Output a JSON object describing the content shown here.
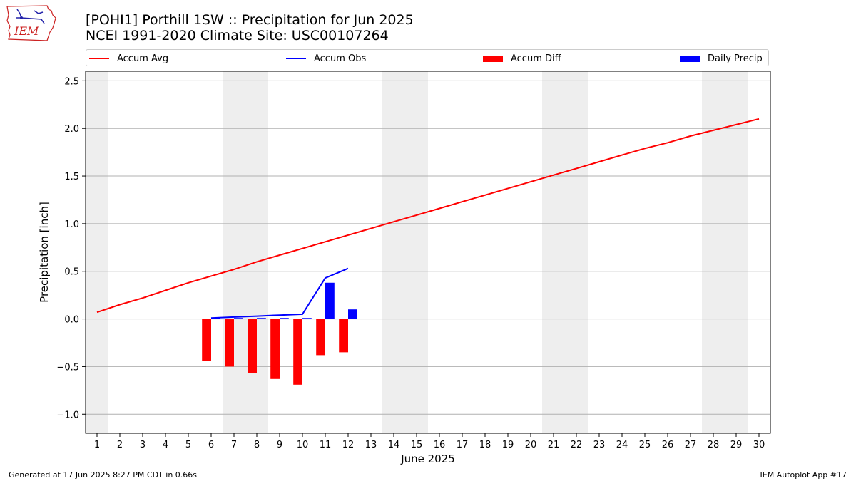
{
  "logo": {
    "text": "IEM"
  },
  "title_line1": "[POHI1] Porthill 1SW :: Precipitation for Jun 2025",
  "title_line2": "NCEI 1991-2020 Climate Site: USC00107264",
  "footer_left": "Generated at 17 Jun 2025 8:27 PM CDT in 0.66s",
  "footer_right": "IEM Autoplot App #17",
  "legend": [
    {
      "label": "Accum Avg",
      "kind": "line",
      "color": "#ff0000"
    },
    {
      "label": "Accum Obs",
      "kind": "line",
      "color": "#0000ff"
    },
    {
      "label": "Accum Diff",
      "kind": "bar",
      "color": "#ff0000"
    },
    {
      "label": "Daily Precip",
      "kind": "bar",
      "color": "#0000ff"
    }
  ],
  "chart_data": {
    "type": "bar",
    "title": "[POHI1] Porthill 1SW :: Precipitation for Jun 2025",
    "subtitle": "NCEI 1991-2020 Climate Site: USC00107264",
    "xlabel": "June 2025",
    "ylabel": "Precipitation [inch]",
    "xlim": [
      0.5,
      30.5
    ],
    "ylim": [
      -1.2,
      2.6
    ],
    "x_ticks": [
      1,
      2,
      3,
      4,
      5,
      6,
      7,
      8,
      9,
      10,
      11,
      12,
      13,
      14,
      15,
      16,
      17,
      18,
      19,
      20,
      21,
      22,
      23,
      24,
      25,
      26,
      27,
      28,
      29,
      30
    ],
    "y_ticks": [
      -1.0,
      -0.5,
      0.0,
      0.5,
      1.0,
      1.5,
      2.0,
      2.5
    ],
    "y_tick_labels": [
      "−1.0",
      "−0.5",
      "0.0",
      "0.5",
      "1.0",
      "1.5",
      "2.0",
      "2.5"
    ],
    "grid": "horizontal",
    "legend_position": "top",
    "weekend_shading": [
      [
        0.5,
        1.5
      ],
      [
        6.5,
        8.5
      ],
      [
        13.5,
        15.5
      ],
      [
        20.5,
        22.5
      ],
      [
        27.5,
        29.5
      ]
    ],
    "shade_color": "#eeeeee",
    "series": [
      {
        "name": "Accum Avg",
        "type": "line",
        "color": "#ff0000",
        "x": [
          1,
          2,
          3,
          4,
          5,
          6,
          7,
          8,
          9,
          10,
          11,
          12,
          13,
          14,
          15,
          16,
          17,
          18,
          19,
          20,
          21,
          22,
          23,
          24,
          25,
          26,
          27,
          28,
          29,
          30
        ],
        "values": [
          0.07,
          0.15,
          0.22,
          0.3,
          0.38,
          0.45,
          0.52,
          0.6,
          0.67,
          0.74,
          0.81,
          0.88,
          0.95,
          1.02,
          1.09,
          1.16,
          1.23,
          1.3,
          1.37,
          1.44,
          1.51,
          1.58,
          1.65,
          1.72,
          1.79,
          1.85,
          1.92,
          1.98,
          2.04,
          2.1
        ]
      },
      {
        "name": "Accum Obs",
        "type": "line",
        "color": "#0000ff",
        "x": [
          6,
          7,
          8,
          9,
          10,
          11,
          12
        ],
        "values": [
          0.01,
          0.02,
          0.03,
          0.04,
          0.05,
          0.43,
          0.53
        ]
      },
      {
        "name": "Accum Diff",
        "type": "bar",
        "color": "#ff0000",
        "x": [
          6,
          7,
          8,
          9,
          10,
          11,
          12
        ],
        "values": [
          -0.44,
          -0.5,
          -0.57,
          -0.63,
          -0.69,
          -0.38,
          -0.35
        ]
      },
      {
        "name": "Daily Precip",
        "type": "bar",
        "color": "#0000ff",
        "x": [
          6,
          7,
          8,
          9,
          10,
          11,
          12
        ],
        "values": [
          0.01,
          0.01,
          0.01,
          0.01,
          0.01,
          0.38,
          0.1
        ]
      }
    ]
  }
}
